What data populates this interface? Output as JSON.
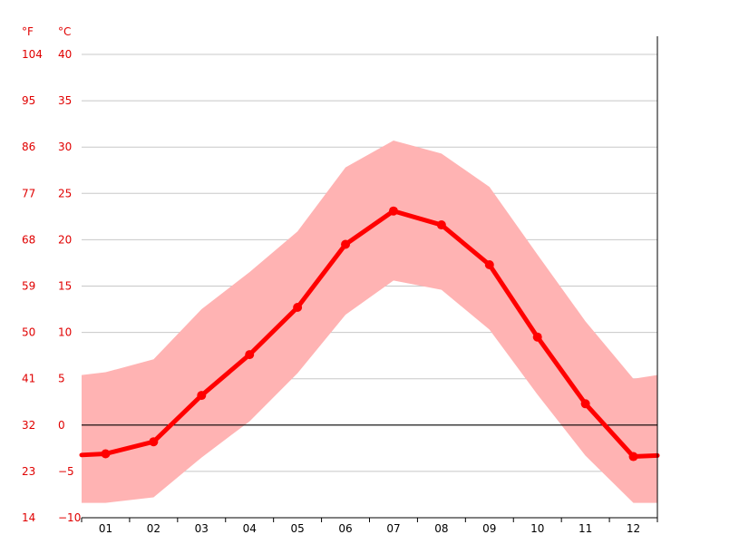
{
  "chart_data": {
    "type": "line",
    "title": "",
    "xlabel": "",
    "ylabel": "",
    "x_unit_left_label": "°F",
    "y_unit_right_label": "°C",
    "categories": [
      "01",
      "02",
      "03",
      "04",
      "05",
      "06",
      "07",
      "08",
      "09",
      "10",
      "11",
      "12"
    ],
    "ylim": [
      -10,
      40
    ],
    "yticks_c": [
      40,
      35,
      30,
      25,
      20,
      15,
      10,
      5,
      0,
      -5,
      -10
    ],
    "yticks_f": [
      "104",
      "95",
      "86",
      "77",
      "68",
      "59",
      "50",
      "41",
      "32",
      "23",
      "14"
    ],
    "yticks_c_labels": [
      "40",
      "35",
      "30",
      "25",
      "20",
      "15",
      "10",
      "5",
      "0",
      "−5",
      "−10"
    ],
    "grid": true,
    "series": [
      {
        "values": [
          -3.1,
          -1.8,
          3.2,
          7.6,
          12.7,
          19.5,
          23.1,
          21.6,
          17.3,
          9.5,
          2.3,
          -3.4
        ]
      }
    ],
    "band": {
      "x_ext": [
        0.5,
        1,
        2,
        3,
        4,
        5,
        6,
        7,
        8,
        9,
        10,
        11,
        12,
        12.5
      ],
      "upper": [
        5.4,
        5.7,
        7.1,
        12.5,
        16.5,
        20.9,
        27.8,
        30.7,
        29.3,
        25.7,
        18.4,
        11.2,
        5.0,
        5.4
      ],
      "lower": [
        -8.4,
        -8.4,
        -7.8,
        -3.5,
        0.4,
        5.6,
        11.9,
        15.6,
        14.6,
        10.3,
        3.3,
        -3.3,
        -8.4,
        -8.4
      ]
    },
    "colors": {
      "line": "#ff0000",
      "band": "#ffb3b3",
      "grid": "#c8c8c8",
      "zero": "#000000",
      "tick_text": "#e00000",
      "x_text": "#000000"
    }
  }
}
